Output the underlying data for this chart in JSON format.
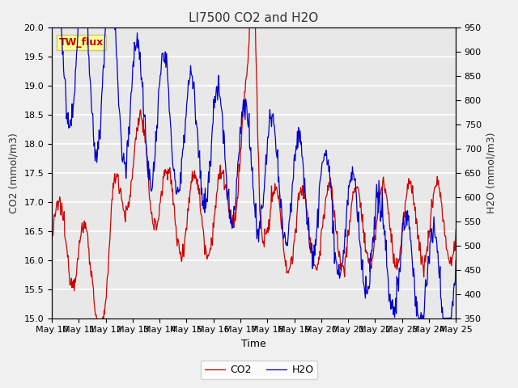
{
  "title": "LI7500 CO2 and H2O",
  "xlabel": "Time",
  "ylabel_left": "CO2 (mmol/m3)",
  "ylabel_right": "H2O (mmol/m3)",
  "annotation": "TW_flux",
  "ylim_left": [
    15.0,
    20.0
  ],
  "ylim_right": [
    350,
    950
  ],
  "xtick_labels": [
    "May 10",
    "May 11",
    "May 12",
    "May 13",
    "May 14",
    "May 15",
    "May 16",
    "May 17",
    "May 18",
    "May 19",
    "May 20",
    "May 21",
    "May 22",
    "May 23",
    "May 24",
    "May 25"
  ],
  "legend_co2": "CO2",
  "legend_h2o": "H2O",
  "color_co2": "#cc0000",
  "color_h2o": "#0000cc",
  "bg_color": "#e8e8e8",
  "fig_bg_color": "#f0f0f0",
  "annotation_bg": "#ffff99",
  "annotation_border": "#cccc66",
  "annotation_text_color": "#cc0000",
  "title_color": "#333333",
  "grid_color": "#ffffff",
  "linewidth": 0.9,
  "title_fontsize": 11,
  "label_fontsize": 9,
  "tick_fontsize": 8,
  "annot_fontsize": 9
}
